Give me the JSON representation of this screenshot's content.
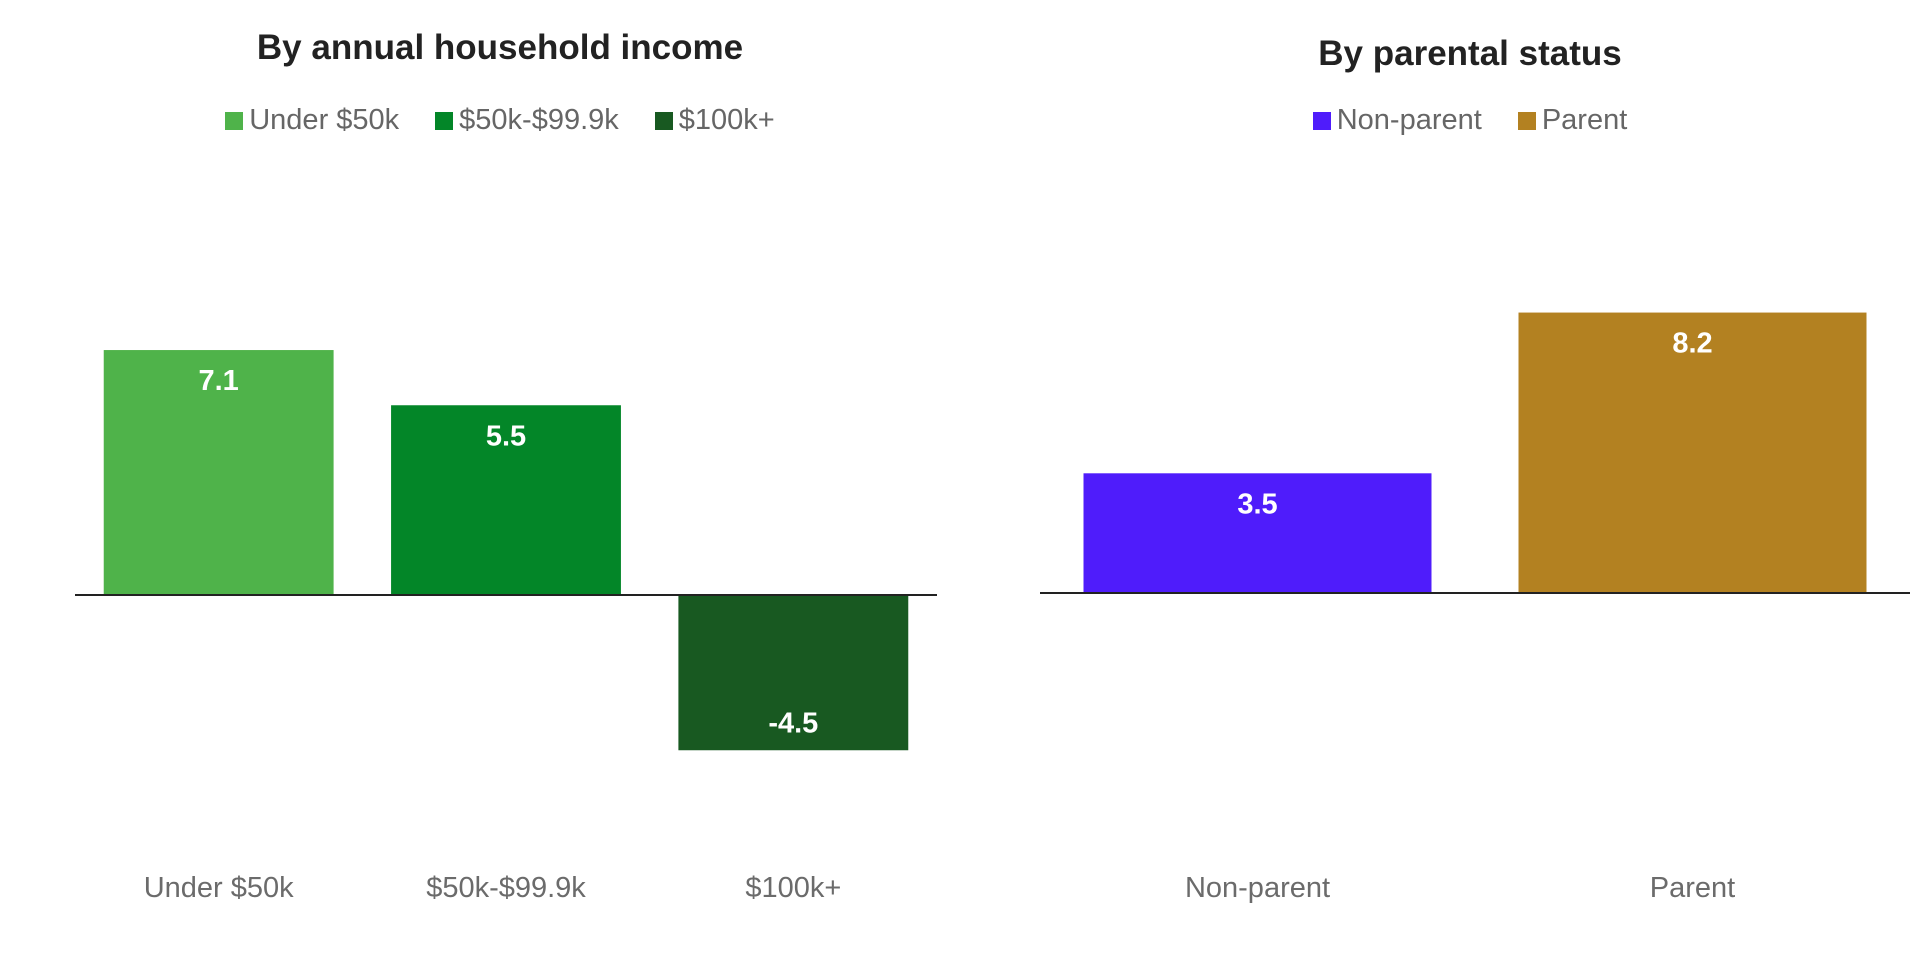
{
  "chart_data": [
    {
      "type": "bar",
      "title": "By annual household income",
      "categories": [
        "Under $50k",
        "$50k-$99.9k",
        "$100k+"
      ],
      "values": [
        7.1,
        5.5,
        -4.5
      ],
      "data_labels": [
        "7.1",
        "5.5",
        "-4.5"
      ],
      "colors": [
        "#4fb34a",
        "#038628",
        "#185921"
      ],
      "legend": [
        "Under $50k",
        "$50k-$99.9k",
        "$100k+"
      ],
      "legend_position": "top-center",
      "ylim": [
        -6,
        10
      ],
      "grid": false
    },
    {
      "type": "bar",
      "title": "By parental status",
      "categories": [
        "Non-parent",
        "Parent"
      ],
      "values": [
        3.5,
        8.2
      ],
      "data_labels": [
        "3.5",
        "8.2"
      ],
      "colors": [
        "#4f1cfb",
        "#b38121"
      ],
      "legend": [
        "Non-parent",
        "Parent"
      ],
      "legend_position": "top-center",
      "ylim": [
        -6,
        10
      ],
      "grid": false
    }
  ]
}
